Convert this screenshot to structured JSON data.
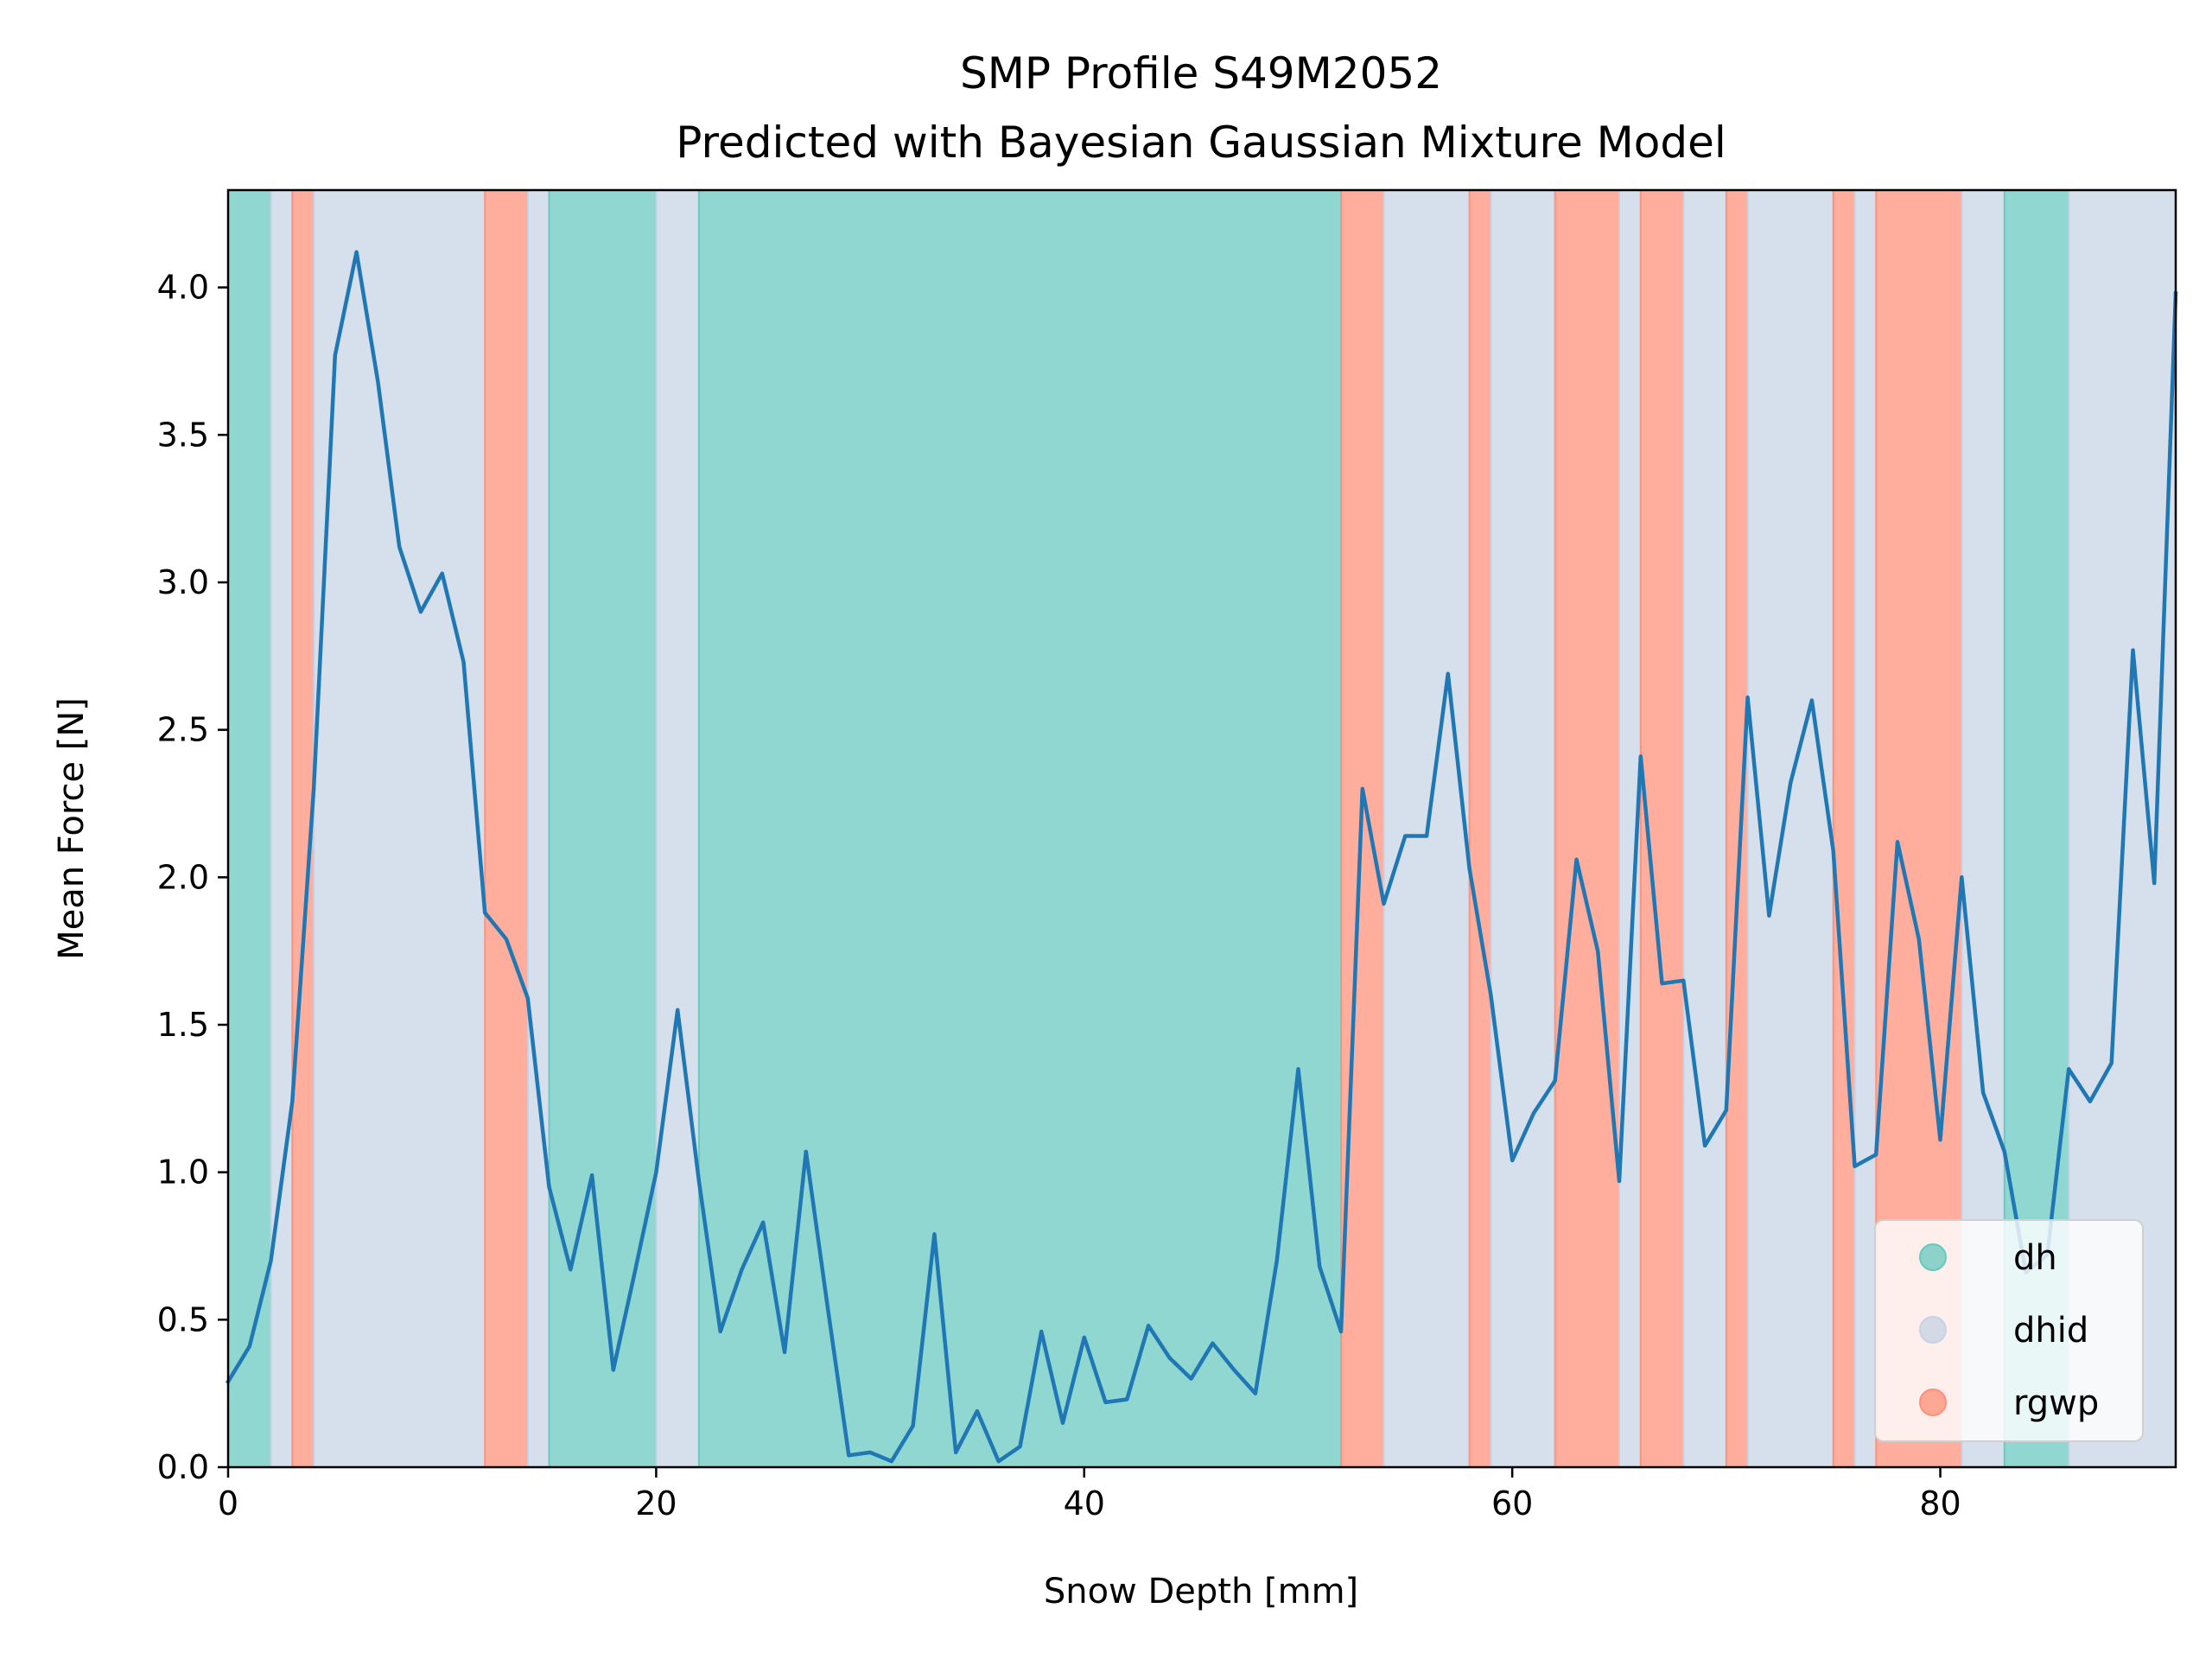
{
  "chart_data": {
    "type": "line",
    "title": "SMP Profile S49M2052",
    "subtitle": "Predicted with Bayesian Gaussian Mixture Model",
    "xlabel": "Snow Depth [mm]",
    "ylabel": "Mean Force [N]",
    "xlim": [
      0,
      91
    ],
    "ylim": [
      0,
      4.33
    ],
    "xticks": [
      "0",
      "20",
      "40",
      "60",
      "80"
    ],
    "yticks": [
      "0.0",
      "0.5",
      "1.0",
      "1.5",
      "2.0",
      "2.5",
      "3.0",
      "3.5",
      "4.0"
    ],
    "grid": false,
    "legend_position": "lower-right",
    "colors": {
      "line": "#1f77b4",
      "dh": "#66c8bf",
      "dhid": "#c6d2e4",
      "rgwp": "#ff8f78"
    },
    "legend": [
      "dh",
      "dhid",
      "rgwp"
    ],
    "segments": [
      {
        "start": 0,
        "end": 2,
        "class": "dh"
      },
      {
        "start": 2,
        "end": 3,
        "class": "dhid"
      },
      {
        "start": 3,
        "end": 4,
        "class": "rgwp"
      },
      {
        "start": 4,
        "end": 12,
        "class": "dhid"
      },
      {
        "start": 12,
        "end": 14,
        "class": "rgwp"
      },
      {
        "start": 14,
        "end": 15,
        "class": "dhid"
      },
      {
        "start": 15,
        "end": 20,
        "class": "dh"
      },
      {
        "start": 20,
        "end": 22,
        "class": "dhid"
      },
      {
        "start": 22,
        "end": 52,
        "class": "dh"
      },
      {
        "start": 52,
        "end": 54,
        "class": "rgwp"
      },
      {
        "start": 54,
        "end": 58,
        "class": "dhid"
      },
      {
        "start": 58,
        "end": 59,
        "class": "rgwp"
      },
      {
        "start": 59,
        "end": 62,
        "class": "dhid"
      },
      {
        "start": 62,
        "end": 65,
        "class": "rgwp"
      },
      {
        "start": 65,
        "end": 66,
        "class": "dhid"
      },
      {
        "start": 66,
        "end": 68,
        "class": "rgwp"
      },
      {
        "start": 68,
        "end": 70,
        "class": "dhid"
      },
      {
        "start": 70,
        "end": 71,
        "class": "rgwp"
      },
      {
        "start": 71,
        "end": 75,
        "class": "dhid"
      },
      {
        "start": 75,
        "end": 76,
        "class": "rgwp"
      },
      {
        "start": 76,
        "end": 77,
        "class": "dhid"
      },
      {
        "start": 77,
        "end": 81,
        "class": "rgwp"
      },
      {
        "start": 81,
        "end": 83,
        "class": "dhid"
      },
      {
        "start": 83,
        "end": 86,
        "class": "dh"
      },
      {
        "start": 86,
        "end": 91,
        "class": "dhid"
      }
    ],
    "series": [
      {
        "x": [
          0,
          1,
          2,
          3,
          4,
          5,
          6,
          7,
          8,
          9,
          10,
          11,
          12,
          13,
          14,
          15,
          16,
          17,
          18,
          19,
          20,
          21,
          22,
          23,
          24,
          25,
          26,
          27,
          28,
          29,
          30,
          31,
          32,
          33,
          34,
          35,
          36,
          37,
          38,
          39,
          40,
          41,
          42,
          43,
          44,
          45,
          46,
          47,
          48,
          49,
          50,
          51,
          52,
          53,
          54,
          55,
          56,
          57,
          58,
          59,
          60,
          61,
          62,
          63,
          64,
          65,
          66,
          67,
          68,
          69,
          70,
          71,
          72,
          73,
          74,
          75,
          76,
          77,
          78,
          79,
          80,
          81,
          82,
          83,
          84,
          85,
          86,
          87,
          88,
          89,
          90,
          91
        ],
        "values": [
          0.29,
          0.41,
          0.7,
          1.24,
          2.3,
          3.77,
          4.12,
          3.68,
          3.12,
          2.9,
          3.03,
          2.73,
          1.88,
          1.79,
          1.59,
          0.95,
          0.67,
          0.99,
          0.33,
          0.66,
          1.0,
          1.55,
          0.97,
          0.46,
          0.67,
          0.83,
          0.39,
          1.07,
          0.55,
          0.04,
          0.05,
          0.02,
          0.14,
          0.79,
          0.05,
          0.19,
          0.02,
          0.07,
          0.46,
          0.15,
          0.44,
          0.22,
          0.23,
          0.48,
          0.37,
          0.3,
          0.42,
          0.33,
          0.25,
          0.7,
          1.35,
          0.68,
          0.46,
          2.3,
          1.91,
          2.14,
          2.14,
          2.69,
          2.03,
          1.6,
          1.04,
          1.2,
          1.31,
          2.06,
          1.75,
          0.97,
          2.41,
          1.64,
          1.65,
          1.09,
          1.21,
          2.61,
          1.87,
          2.32,
          2.6,
          2.09,
          1.02,
          1.06,
          2.12,
          1.79,
          1.11,
          2.0,
          1.27,
          1.07,
          0.66,
          0.72,
          1.35,
          1.24,
          1.37,
          2.77,
          1.98,
          3.98
        ]
      }
    ]
  }
}
